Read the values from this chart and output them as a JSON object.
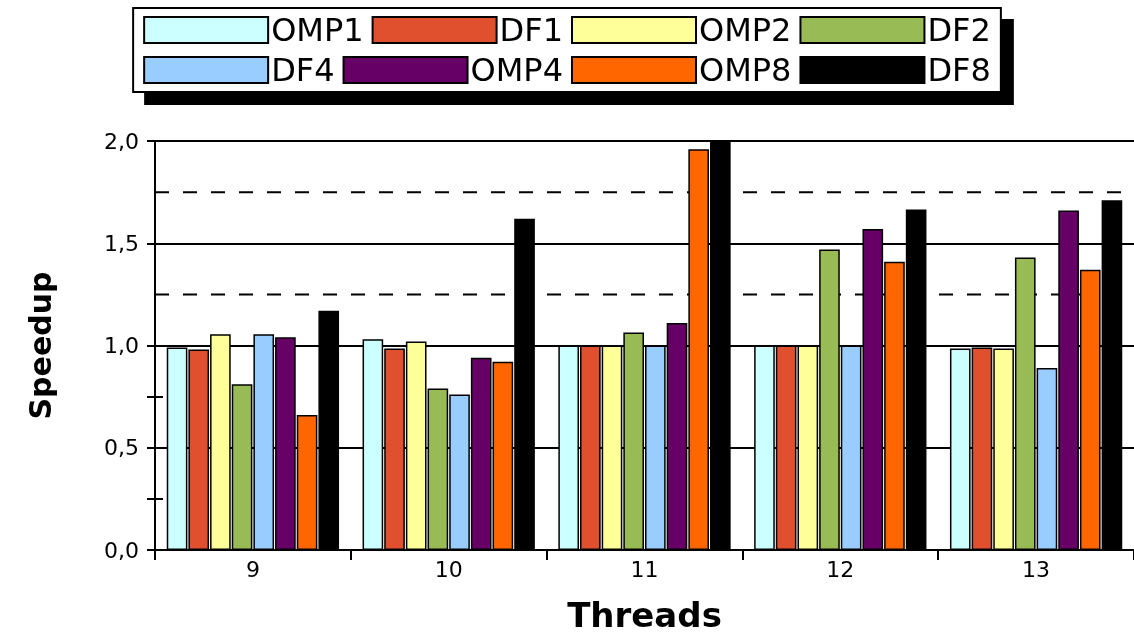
{
  "chart_data": {
    "type": "bar",
    "xlabel": "Threads",
    "ylabel": "Speedup",
    "categories": [
      "9",
      "10",
      "11",
      "12",
      "13"
    ],
    "series": [
      {
        "name": "OMP1",
        "color": "#ccffff",
        "values": [
          0.99,
          1.03,
          1.0,
          1.0,
          0.985
        ]
      },
      {
        "name": "DF1",
        "color": "#e0502e",
        "values": [
          0.98,
          0.985,
          1.0,
          1.0,
          0.99
        ]
      },
      {
        "name": "OMP2",
        "color": "#ffff99",
        "values": [
          1.055,
          1.02,
          1.0,
          1.0,
          0.985
        ]
      },
      {
        "name": "DF2",
        "color": "#99bb55",
        "values": [
          0.81,
          0.79,
          1.063,
          1.47,
          1.43
        ]
      },
      {
        "name": "DF4",
        "color": "#99ccff",
        "values": [
          1.055,
          0.76,
          1.0,
          1.0,
          0.89
        ]
      },
      {
        "name": "OMP4",
        "color": "#660066",
        "values": [
          1.04,
          0.94,
          1.11,
          1.57,
          1.66
        ]
      },
      {
        "name": "OMP8",
        "color": "#ff6600",
        "values": [
          0.66,
          0.92,
          1.96,
          1.41,
          1.37
        ]
      },
      {
        "name": "DF8",
        "color": "#000000",
        "values": [
          1.17,
          1.62,
          2.0,
          1.665,
          1.71
        ]
      }
    ],
    "ylim": [
      0,
      2
    ],
    "yticks": [
      {
        "value": 0,
        "label": "0,0"
      },
      {
        "value": 0.25,
        "label": null
      },
      {
        "value": 0.5,
        "label": "0,5"
      },
      {
        "value": 0.75,
        "label": null
      },
      {
        "value": 1,
        "label": "1,0"
      },
      {
        "value": 1.5,
        "label": "1,5"
      },
      {
        "value": 2,
        "label": "2,0"
      }
    ],
    "ref_lines": [
      {
        "axis": "y",
        "value": 1.25,
        "line_style": "dashed",
        "color": "#000000"
      },
      {
        "axis": "y",
        "value": 1.75,
        "line_style": "dashed",
        "color": "#000000"
      }
    ],
    "grid": "y",
    "legend": "top"
  }
}
